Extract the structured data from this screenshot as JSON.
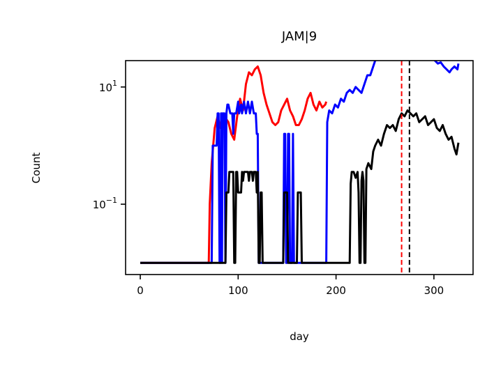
{
  "chart_data": {
    "type": "line",
    "title": "JAM|9",
    "xlabel": "day",
    "ylabel": "Count",
    "xlim": [
      -15,
      340
    ],
    "ylim_log10": [
      -2.2,
      1.45
    ],
    "yscale": "log",
    "grid": false,
    "legend": "none",
    "x_ticks": [
      {
        "value": 0,
        "label": "0"
      },
      {
        "value": 100,
        "label": "100"
      },
      {
        "value": 200,
        "label": "200"
      },
      {
        "value": 300,
        "label": "300"
      }
    ],
    "y_ticks": [
      {
        "log10": 1,
        "base": "10",
        "exp": "1"
      },
      {
        "log10": -1,
        "base": "10",
        "exp": "−1"
      }
    ],
    "vlines": [
      {
        "x": 267,
        "color": "#ff0000",
        "style": "dashed"
      },
      {
        "x": 275,
        "color": "#000000",
        "style": "dashed"
      }
    ],
    "series": [
      {
        "color": "#ff0000",
        "log10_points": [
          [
            0,
            -2
          ],
          [
            70,
            -2
          ],
          [
            71,
            -1
          ],
          [
            73,
            -0.3
          ],
          [
            76,
            0.3
          ],
          [
            79,
            0.5
          ],
          [
            82,
            0.3
          ],
          [
            86,
            0.5
          ],
          [
            90,
            0.4
          ],
          [
            93,
            0.2
          ],
          [
            96,
            0.1
          ],
          [
            99,
            0.5
          ],
          [
            102,
            0.8
          ],
          [
            105,
            0.6
          ],
          [
            108,
            1.05
          ],
          [
            111,
            1.25
          ],
          [
            114,
            1.2
          ],
          [
            117,
            1.3
          ],
          [
            120,
            1.35
          ],
          [
            123,
            1.2
          ],
          [
            126,
            0.9
          ],
          [
            129,
            0.7
          ],
          [
            132,
            0.55
          ],
          [
            135,
            0.4
          ],
          [
            138,
            0.35
          ],
          [
            141,
            0.4
          ],
          [
            144,
            0.6
          ],
          [
            147,
            0.7
          ],
          [
            150,
            0.8
          ],
          [
            153,
            0.6
          ],
          [
            156,
            0.5
          ],
          [
            159,
            0.35
          ],
          [
            162,
            0.35
          ],
          [
            165,
            0.45
          ],
          [
            168,
            0.6
          ],
          [
            171,
            0.8
          ],
          [
            174,
            0.9
          ],
          [
            177,
            0.7
          ],
          [
            180,
            0.6
          ],
          [
            183,
            0.75
          ],
          [
            186,
            0.65
          ],
          [
            189,
            0.7
          ],
          [
            190,
            0.75
          ]
        ]
      },
      {
        "color": "#0000ff",
        "log10_points": [
          [
            0,
            -2
          ],
          [
            73,
            -2
          ],
          [
            74,
            0
          ],
          [
            78,
            0
          ],
          [
            79,
            0.55
          ],
          [
            80,
            0.55
          ],
          [
            81,
            -2
          ],
          [
            82,
            -2
          ],
          [
            82.5,
            0.55
          ],
          [
            83,
            0.55
          ],
          [
            83.5,
            -2
          ],
          [
            84,
            0.55
          ],
          [
            86,
            0.55
          ],
          [
            87,
            -2
          ],
          [
            88,
            0.55
          ],
          [
            89,
            0.7
          ],
          [
            90,
            0.7
          ],
          [
            92,
            0.55
          ],
          [
            94,
            0.55
          ],
          [
            95,
            0.2
          ],
          [
            96,
            0.55
          ],
          [
            98,
            0.55
          ],
          [
            100,
            0.75
          ],
          [
            101,
            0.55
          ],
          [
            103,
            0.7
          ],
          [
            104,
            0.55
          ],
          [
            106,
            0.75
          ],
          [
            108,
            0.55
          ],
          [
            110,
            0.75
          ],
          [
            112,
            0.55
          ],
          [
            114,
            0.75
          ],
          [
            116,
            0.55
          ],
          [
            118,
            0.55
          ],
          [
            119,
            0.2
          ],
          [
            120,
            0.2
          ],
          [
            121,
            -2
          ],
          [
            146,
            -2
          ],
          [
            147,
            0.2
          ],
          [
            148,
            0.2
          ],
          [
            149,
            -2
          ],
          [
            150,
            -2
          ],
          [
            151,
            0.2
          ],
          [
            152,
            0.2
          ],
          [
            153,
            -2
          ],
          [
            155,
            -2
          ],
          [
            156,
            0.2
          ],
          [
            157,
            -2
          ],
          [
            190,
            -2
          ],
          [
            191,
            0.4
          ],
          [
            193,
            0.6
          ],
          [
            196,
            0.55
          ],
          [
            199,
            0.7
          ],
          [
            202,
            0.65
          ],
          [
            205,
            0.8
          ],
          [
            208,
            0.75
          ],
          [
            211,
            0.9
          ],
          [
            214,
            0.95
          ],
          [
            217,
            0.9
          ],
          [
            220,
            1.0
          ],
          [
            223,
            0.95
          ],
          [
            226,
            0.9
          ],
          [
            229,
            1.05
          ],
          [
            232,
            1.2
          ],
          [
            235,
            1.2
          ],
          [
            238,
            1.35
          ],
          [
            241,
            1.5
          ],
          [
            244,
            1.6
          ],
          [
            247,
            1.55
          ],
          [
            250,
            1.65
          ],
          [
            253,
            1.72
          ],
          [
            256,
            1.7
          ],
          [
            259,
            1.65
          ],
          [
            262,
            1.7
          ],
          [
            265,
            1.75
          ],
          [
            268,
            1.7
          ],
          [
            271,
            1.78
          ],
          [
            274,
            1.68
          ],
          [
            277,
            1.72
          ],
          [
            280,
            1.7
          ],
          [
            283,
            1.65
          ],
          [
            286,
            1.7
          ],
          [
            289,
            1.6
          ],
          [
            292,
            1.55
          ],
          [
            295,
            1.5
          ],
          [
            298,
            1.55
          ],
          [
            301,
            1.45
          ],
          [
            304,
            1.4
          ],
          [
            307,
            1.42
          ],
          [
            310,
            1.35
          ],
          [
            313,
            1.3
          ],
          [
            316,
            1.25
          ],
          [
            318,
            1.3
          ],
          [
            321,
            1.35
          ],
          [
            324,
            1.3
          ],
          [
            325,
            1.4
          ]
        ]
      },
      {
        "color": "#000000",
        "log10_points": [
          [
            0,
            -2
          ],
          [
            87,
            -2
          ],
          [
            88,
            -0.8
          ],
          [
            89,
            -0.8
          ],
          [
            90,
            -0.8
          ],
          [
            91,
            -0.45
          ],
          [
            95,
            -0.45
          ],
          [
            96,
            -2
          ],
          [
            97,
            -2
          ],
          [
            98,
            -0.45
          ],
          [
            99,
            -0.45
          ],
          [
            100,
            -0.8
          ],
          [
            103,
            -0.8
          ],
          [
            104,
            -0.45
          ],
          [
            105,
            -0.6
          ],
          [
            106,
            -0.45
          ],
          [
            110,
            -0.45
          ],
          [
            111,
            -0.6
          ],
          [
            112,
            -0.45
          ],
          [
            114,
            -0.45
          ],
          [
            115,
            -0.6
          ],
          [
            116,
            -0.45
          ],
          [
            118,
            -0.45
          ],
          [
            119,
            -0.8
          ],
          [
            120,
            -0.45
          ],
          [
            121,
            -2
          ],
          [
            122,
            -2
          ],
          [
            123,
            -0.8
          ],
          [
            124,
            -0.8
          ],
          [
            125,
            -2
          ],
          [
            146,
            -2
          ],
          [
            147,
            -0.8
          ],
          [
            150,
            -0.8
          ],
          [
            151,
            -2
          ],
          [
            160,
            -2
          ],
          [
            161,
            -0.8
          ],
          [
            164,
            -0.8
          ],
          [
            165,
            -2
          ],
          [
            214,
            -2
          ],
          [
            215,
            -0.65
          ],
          [
            216,
            -0.45
          ],
          [
            218,
            -0.45
          ],
          [
            220,
            -0.55
          ],
          [
            222,
            -0.45
          ],
          [
            223,
            -0.8
          ],
          [
            224,
            -2
          ],
          [
            225,
            -2
          ],
          [
            226,
            -0.6
          ],
          [
            227,
            -0.45
          ],
          [
            228,
            -0.6
          ],
          [
            229,
            -2
          ],
          [
            230,
            -2
          ],
          [
            231,
            -0.4
          ],
          [
            233,
            -0.3
          ],
          [
            236,
            -0.4
          ],
          [
            238,
            -0.1
          ],
          [
            240,
            0.0
          ],
          [
            243,
            0.1
          ],
          [
            246,
            0.0
          ],
          [
            249,
            0.2
          ],
          [
            252,
            0.35
          ],
          [
            255,
            0.3
          ],
          [
            258,
            0.35
          ],
          [
            261,
            0.25
          ],
          [
            264,
            0.45
          ],
          [
            267,
            0.55
          ],
          [
            270,
            0.5
          ],
          [
            273,
            0.6
          ],
          [
            276,
            0.55
          ],
          [
            279,
            0.5
          ],
          [
            282,
            0.55
          ],
          [
            285,
            0.4
          ],
          [
            288,
            0.45
          ],
          [
            291,
            0.5
          ],
          [
            294,
            0.35
          ],
          [
            297,
            0.4
          ],
          [
            300,
            0.45
          ],
          [
            303,
            0.3
          ],
          [
            306,
            0.25
          ],
          [
            309,
            0.35
          ],
          [
            312,
            0.2
          ],
          [
            315,
            0.1
          ],
          [
            318,
            0.15
          ],
          [
            321,
            -0.05
          ],
          [
            323,
            -0.15
          ],
          [
            325,
            0.05
          ]
        ]
      }
    ]
  }
}
